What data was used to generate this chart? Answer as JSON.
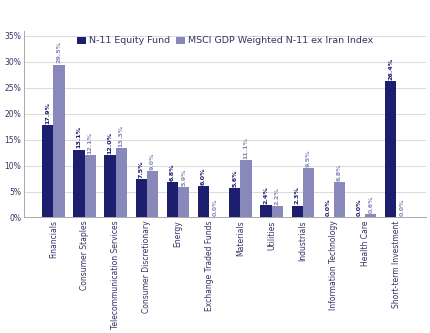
{
  "categories": [
    "Financials",
    "Consumer Staples",
    "Telecommunication Services",
    "Consumer Discretionary",
    "Energy",
    "Exchange Traded Funds",
    "Materials",
    "Utilities",
    "Industrials",
    "Information Technology",
    "Health Care",
    "Short-term Investment"
  ],
  "fund_values": [
    17.9,
    13.1,
    12.0,
    7.5,
    6.8,
    6.0,
    5.6,
    2.4,
    2.3,
    0.0,
    0.0,
    26.4
  ],
  "benchmark_values": [
    29.5,
    12.1,
    13.3,
    9.0,
    5.9,
    0.0,
    11.1,
    2.2,
    9.5,
    6.8,
    0.6,
    0.0
  ],
  "fund_color": "#1e1e6e",
  "benchmark_color": "#8888bb",
  "fund_label": "N-11 Equity Fund",
  "benchmark_label": "MSCI GDP Weighted N-11 ex Iran Index",
  "ylim": [
    0,
    36
  ],
  "yticks": [
    0,
    5,
    10,
    15,
    20,
    25,
    30,
    35
  ],
  "bar_width": 0.36,
  "tick_fontsize": 5.5,
  "legend_fontsize": 6.8,
  "value_fontsize": 4.6
}
